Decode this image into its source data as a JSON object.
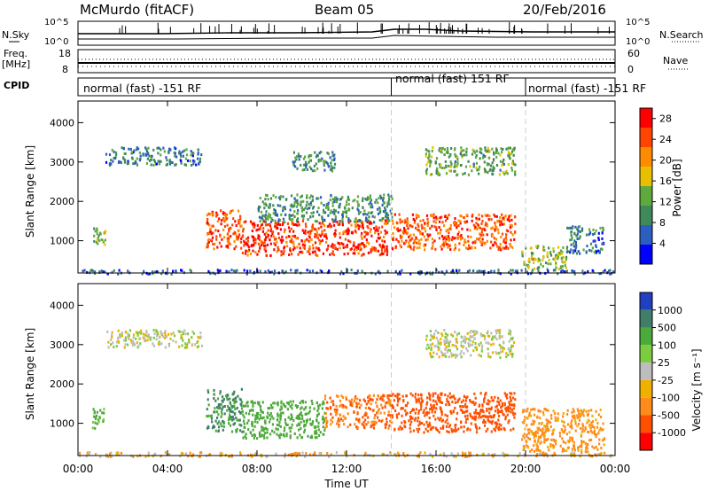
{
  "header": {
    "station": "McMurdo (fitACF)",
    "beam": "Beam 05",
    "date": "20/Feb/2016"
  },
  "status_panels": {
    "nsky_label": "N.Sky",
    "nsky_ticks": [
      "10^5",
      "10^0"
    ],
    "nsearch_label": "N.Search",
    "nsearch_ticks": [
      "10^5",
      "10^0"
    ],
    "freq_label_top": "Freq.",
    "freq_label_bottom": "[MHz]",
    "freq_ticks": [
      "18",
      "8"
    ],
    "nave_label": "Nave",
    "nave_ticks": [
      "60",
      "0"
    ],
    "cpid_label": "CPID",
    "cpid_segments": [
      {
        "label": "normal (fast) -151 RF",
        "start_hour": 0,
        "end_hour": 14
      },
      {
        "label": "normal (fast) 151 RF",
        "start_hour": 14,
        "end_hour": 20
      },
      {
        "label": "normal (fast) -151 RF",
        "start_hour": 20,
        "end_hour": 24
      }
    ]
  },
  "x_axis": {
    "label": "Time UT",
    "ticks": [
      "00:00",
      "04:00",
      "08:00",
      "12:00",
      "16:00",
      "20:00",
      "00:00"
    ]
  },
  "colors": {
    "power": [
      "#0000ff",
      "#2b5fbf",
      "#3f8a5a",
      "#5faa3f",
      "#e8c000",
      "#ff8c00",
      "#ff4500",
      "#ff0000"
    ],
    "velocity": [
      "#2040c0",
      "#3f7f6a",
      "#4caa3a",
      "#7ccc40",
      "#bdbdbd",
      "#f0b000",
      "#ff8c1a",
      "#ff5000",
      "#ff0000"
    ],
    "ground_scatter": "#b0b0b0"
  },
  "chart_data": [
    {
      "type": "heatmap",
      "title": "",
      "xlabel": "",
      "ylabel": "Slant Range [km]",
      "xlim": [
        0,
        24
      ],
      "ylim": [
        180,
        4550
      ],
      "yticks": [
        "1000",
        "2000",
        "3000",
        "4000"
      ],
      "colorbar_label": "Power [dB]",
      "colorbar_ticks": [
        "4",
        "8",
        "12",
        "16",
        "20",
        "24",
        "28"
      ],
      "colorbar_range": [
        0,
        30
      ],
      "regions": [
        {
          "x_start": 0.6,
          "x_end": 1.2,
          "y_low": 900,
          "y_high": 1400,
          "value": 14
        },
        {
          "x_start": 1.2,
          "x_end": 5.5,
          "y_low": 2950,
          "y_high": 3400,
          "value": 8
        },
        {
          "x_start": 5.7,
          "x_end": 7.3,
          "y_low": 800,
          "y_high": 1800,
          "value": 24
        },
        {
          "x_start": 7.3,
          "x_end": 13.8,
          "y_low": 650,
          "y_high": 1550,
          "value": 26
        },
        {
          "x_start": 8.0,
          "x_end": 14.0,
          "y_low": 1500,
          "y_high": 2200,
          "value": 10
        },
        {
          "x_start": 9.5,
          "x_end": 11.5,
          "y_low": 2800,
          "y_high": 3300,
          "value": 10
        },
        {
          "x_start": 14.0,
          "x_end": 19.5,
          "y_low": 800,
          "y_high": 1700,
          "value": 24
        },
        {
          "x_start": 15.5,
          "x_end": 19.5,
          "y_low": 2700,
          "y_high": 3400,
          "value": 12
        },
        {
          "x_start": 19.8,
          "x_end": 21.8,
          "y_low": 300,
          "y_high": 900,
          "value": 14
        },
        {
          "x_start": 21.8,
          "x_end": 23.5,
          "y_low": 700,
          "y_high": 1400,
          "value": 8
        },
        {
          "x_start": 0.0,
          "x_end": 24.0,
          "y_low": 180,
          "y_high": 290,
          "value": 6
        }
      ]
    },
    {
      "type": "heatmap",
      "title": "",
      "xlabel": "Time UT",
      "ylabel": "Slant Range [km]",
      "xlim": [
        0,
        24
      ],
      "ylim": [
        180,
        4550
      ],
      "yticks": [
        "1000",
        "2000",
        "3000",
        "4000"
      ],
      "colorbar_label": "Velocity [m s⁻¹]",
      "colorbar_ticks": [
        "1000",
        "500",
        "100",
        "25",
        "-25",
        "-100",
        "-500",
        "-1000"
      ],
      "regions": [
        {
          "x_start": 0.6,
          "x_end": 1.2,
          "y_low": 900,
          "y_high": 1400,
          "value": 100
        },
        {
          "x_start": 1.2,
          "x_end": 5.5,
          "y_low": 2950,
          "y_high": 3400,
          "value": 0
        },
        {
          "x_start": 5.7,
          "x_end": 7.3,
          "y_low": 800,
          "y_high": 1900,
          "value": 300
        },
        {
          "x_start": 7.3,
          "x_end": 11.0,
          "y_low": 650,
          "y_high": 1600,
          "value": 150
        },
        {
          "x_start": 11.0,
          "x_end": 14.0,
          "y_low": 900,
          "y_high": 1750,
          "value": -300
        },
        {
          "x_start": 14.0,
          "x_end": 19.5,
          "y_low": 800,
          "y_high": 1800,
          "value": -400
        },
        {
          "x_start": 15.5,
          "x_end": 19.5,
          "y_low": 2700,
          "y_high": 3400,
          "value": 0
        },
        {
          "x_start": 19.8,
          "x_end": 23.5,
          "y_low": 300,
          "y_high": 1400,
          "value": -100
        },
        {
          "x_start": 0.0,
          "x_end": 24.0,
          "y_low": 180,
          "y_high": 290,
          "value": -50
        }
      ]
    }
  ]
}
